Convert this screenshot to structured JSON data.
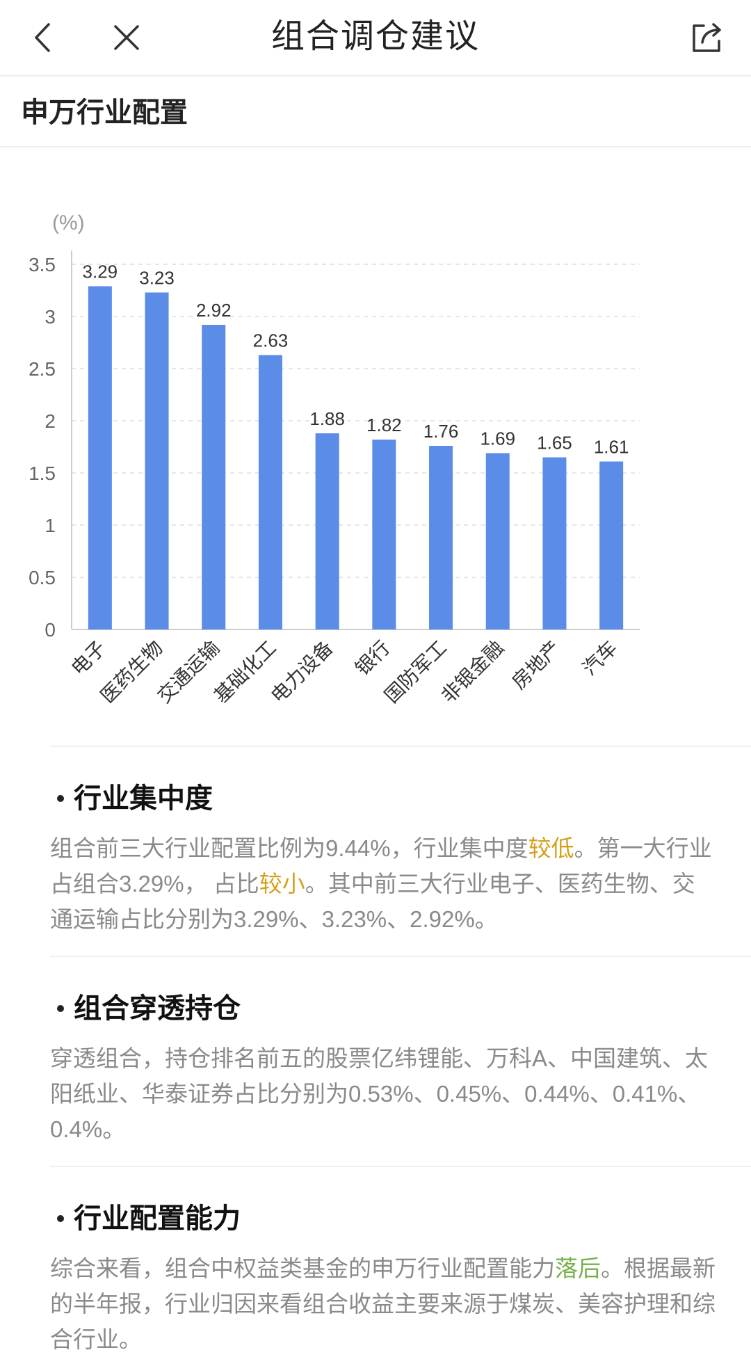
{
  "header": {
    "title": "组合调仓建议",
    "back_icon": "chevron-left-icon",
    "close_icon": "close-icon",
    "share_icon": "share-icon"
  },
  "section": {
    "title": "申万行业配置"
  },
  "chart_data": {
    "type": "bar",
    "unit_label": "(%)",
    "categories": [
      "电子",
      "医药生物",
      "交通运输",
      "基础化工",
      "电力设备",
      "银行",
      "国防军工",
      "非银金融",
      "房地产",
      "汽车"
    ],
    "values": [
      3.29,
      3.23,
      2.92,
      2.63,
      1.88,
      1.82,
      1.76,
      1.69,
      1.65,
      1.61
    ],
    "value_labels": [
      "3.29",
      "3.23",
      "2.92",
      "2.63",
      "1.88",
      "1.82",
      "1.76",
      "1.69",
      "1.65",
      "1.61"
    ],
    "y_ticks": [
      "0",
      "0.5",
      "1",
      "1.5",
      "2",
      "2.5",
      "3",
      "3.5"
    ],
    "ylim": [
      0,
      3.5
    ],
    "grid": true,
    "bar_color": "#5b8ce8"
  },
  "analysis": {
    "concentration": {
      "title": "行业集中度",
      "seg1": "组合前三大行业配置比例为9.44%，行业集中度",
      "hl1": "较低",
      "seg2": "。第一大行业占组合3.29%， 占比",
      "hl2": "较小",
      "seg3": "。其中前三大行业电子、医药生物、交通运输占比分别为3.29%、3.23%、2.92%。"
    },
    "holdings": {
      "title": "组合穿透持仓",
      "text": "穿透组合，持仓排名前五的股票亿纬锂能、万科A、中国建筑、太阳纸业、华泰证券占比分别为0.53%、0.45%、0.44%、0.41%、0.4%。"
    },
    "ability": {
      "title": "行业配置能力",
      "seg1": "综合来看，组合中权益类基金的申万行业配置能力",
      "hl1": "落后",
      "seg2": "。根据最新的半年报，行业归因来看组合收益主要来源于煤炭、美容护理和综合行业。"
    }
  },
  "colors": {
    "highlight_gold": "#d4a01e",
    "highlight_green": "#74b14a",
    "body_text": "#8a8a8a"
  }
}
